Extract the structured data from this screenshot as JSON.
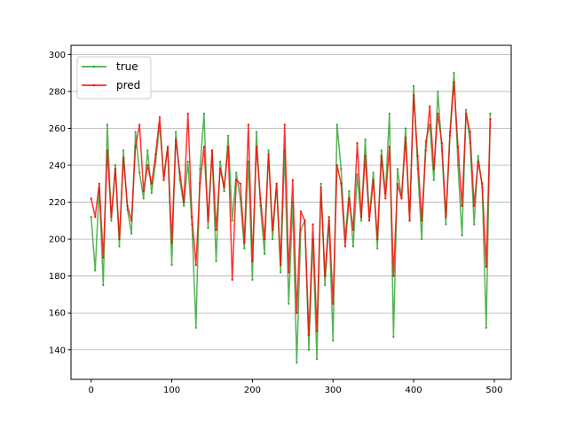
{
  "chart_data": {
    "type": "line",
    "title": "",
    "xlabel": "",
    "ylabel": "",
    "xlim": [
      -25,
      521
    ],
    "ylim": [
      124,
      305
    ],
    "grid": "horizontal",
    "legend_placement": "top-left",
    "x_ticks": [
      0,
      100,
      200,
      300,
      400,
      500
    ],
    "y_ticks": [
      140,
      160,
      180,
      200,
      220,
      240,
      260,
      280,
      300
    ],
    "x": [
      0,
      5,
      10,
      15,
      20,
      25,
      30,
      35,
      40,
      45,
      50,
      55,
      60,
      65,
      70,
      75,
      80,
      85,
      90,
      95,
      100,
      105,
      110,
      115,
      120,
      125,
      130,
      135,
      140,
      145,
      150,
      155,
      160,
      165,
      170,
      175,
      180,
      185,
      190,
      195,
      200,
      205,
      210,
      215,
      220,
      225,
      230,
      235,
      240,
      245,
      250,
      255,
      260,
      265,
      270,
      275,
      280,
      285,
      290,
      295,
      300,
      305,
      310,
      315,
      320,
      325,
      330,
      335,
      340,
      345,
      350,
      355,
      360,
      365,
      370,
      375,
      380,
      385,
      390,
      395,
      400,
      405,
      410,
      415,
      420,
      425,
      430,
      435,
      440,
      445,
      450,
      455,
      460,
      465,
      470,
      475,
      480,
      485,
      490,
      495
    ],
    "series": [
      {
        "name": "true",
        "color": "#2ca02c",
        "values": [
          212,
          183,
          228,
          175,
          262,
          210,
          240,
          196,
          248,
          216,
          203,
          258,
          236,
          222,
          248,
          225,
          242,
          262,
          234,
          250,
          186,
          258,
          232,
          218,
          242,
          208,
          152,
          238,
          268,
          206,
          248,
          188,
          242,
          226,
          256,
          210,
          236,
          222,
          195,
          242,
          178,
          258,
          218,
          192,
          248,
          200,
          230,
          182,
          248,
          165,
          220,
          133,
          205,
          210,
          140,
          200,
          135,
          230,
          175,
          210,
          145,
          262,
          238,
          200,
          226,
          196,
          235,
          210,
          254,
          212,
          236,
          195,
          248,
          225,
          268,
          147,
          238,
          222,
          260,
          210,
          283,
          238,
          200,
          253,
          262,
          232,
          280,
          248,
          208,
          258,
          290,
          240,
          202,
          270,
          252,
          208,
          245,
          228,
          152,
          268
        ]
      },
      {
        "name": "pred",
        "color": "#ff0000",
        "values": [
          222,
          212,
          230,
          190,
          248,
          212,
          238,
          200,
          244,
          218,
          210,
          250,
          262,
          226,
          240,
          230,
          246,
          266,
          232,
          250,
          198,
          254,
          236,
          220,
          268,
          212,
          186,
          230,
          250,
          210,
          248,
          205,
          238,
          228,
          250,
          178,
          232,
          230,
          198,
          262,
          188,
          250,
          222,
          200,
          246,
          205,
          230,
          186,
          262,
          182,
          232,
          160,
          215,
          210,
          148,
          208,
          150,
          228,
          180,
          212,
          165,
          240,
          230,
          196,
          222,
          205,
          252,
          212,
          245,
          210,
          232,
          200,
          245,
          222,
          250,
          180,
          230,
          222,
          255,
          210,
          278,
          245,
          210,
          248,
          272,
          238,
          268,
          252,
          212,
          256,
          285,
          250,
          218,
          268,
          258,
          218,
          242,
          230,
          185,
          265
        ]
      }
    ]
  }
}
